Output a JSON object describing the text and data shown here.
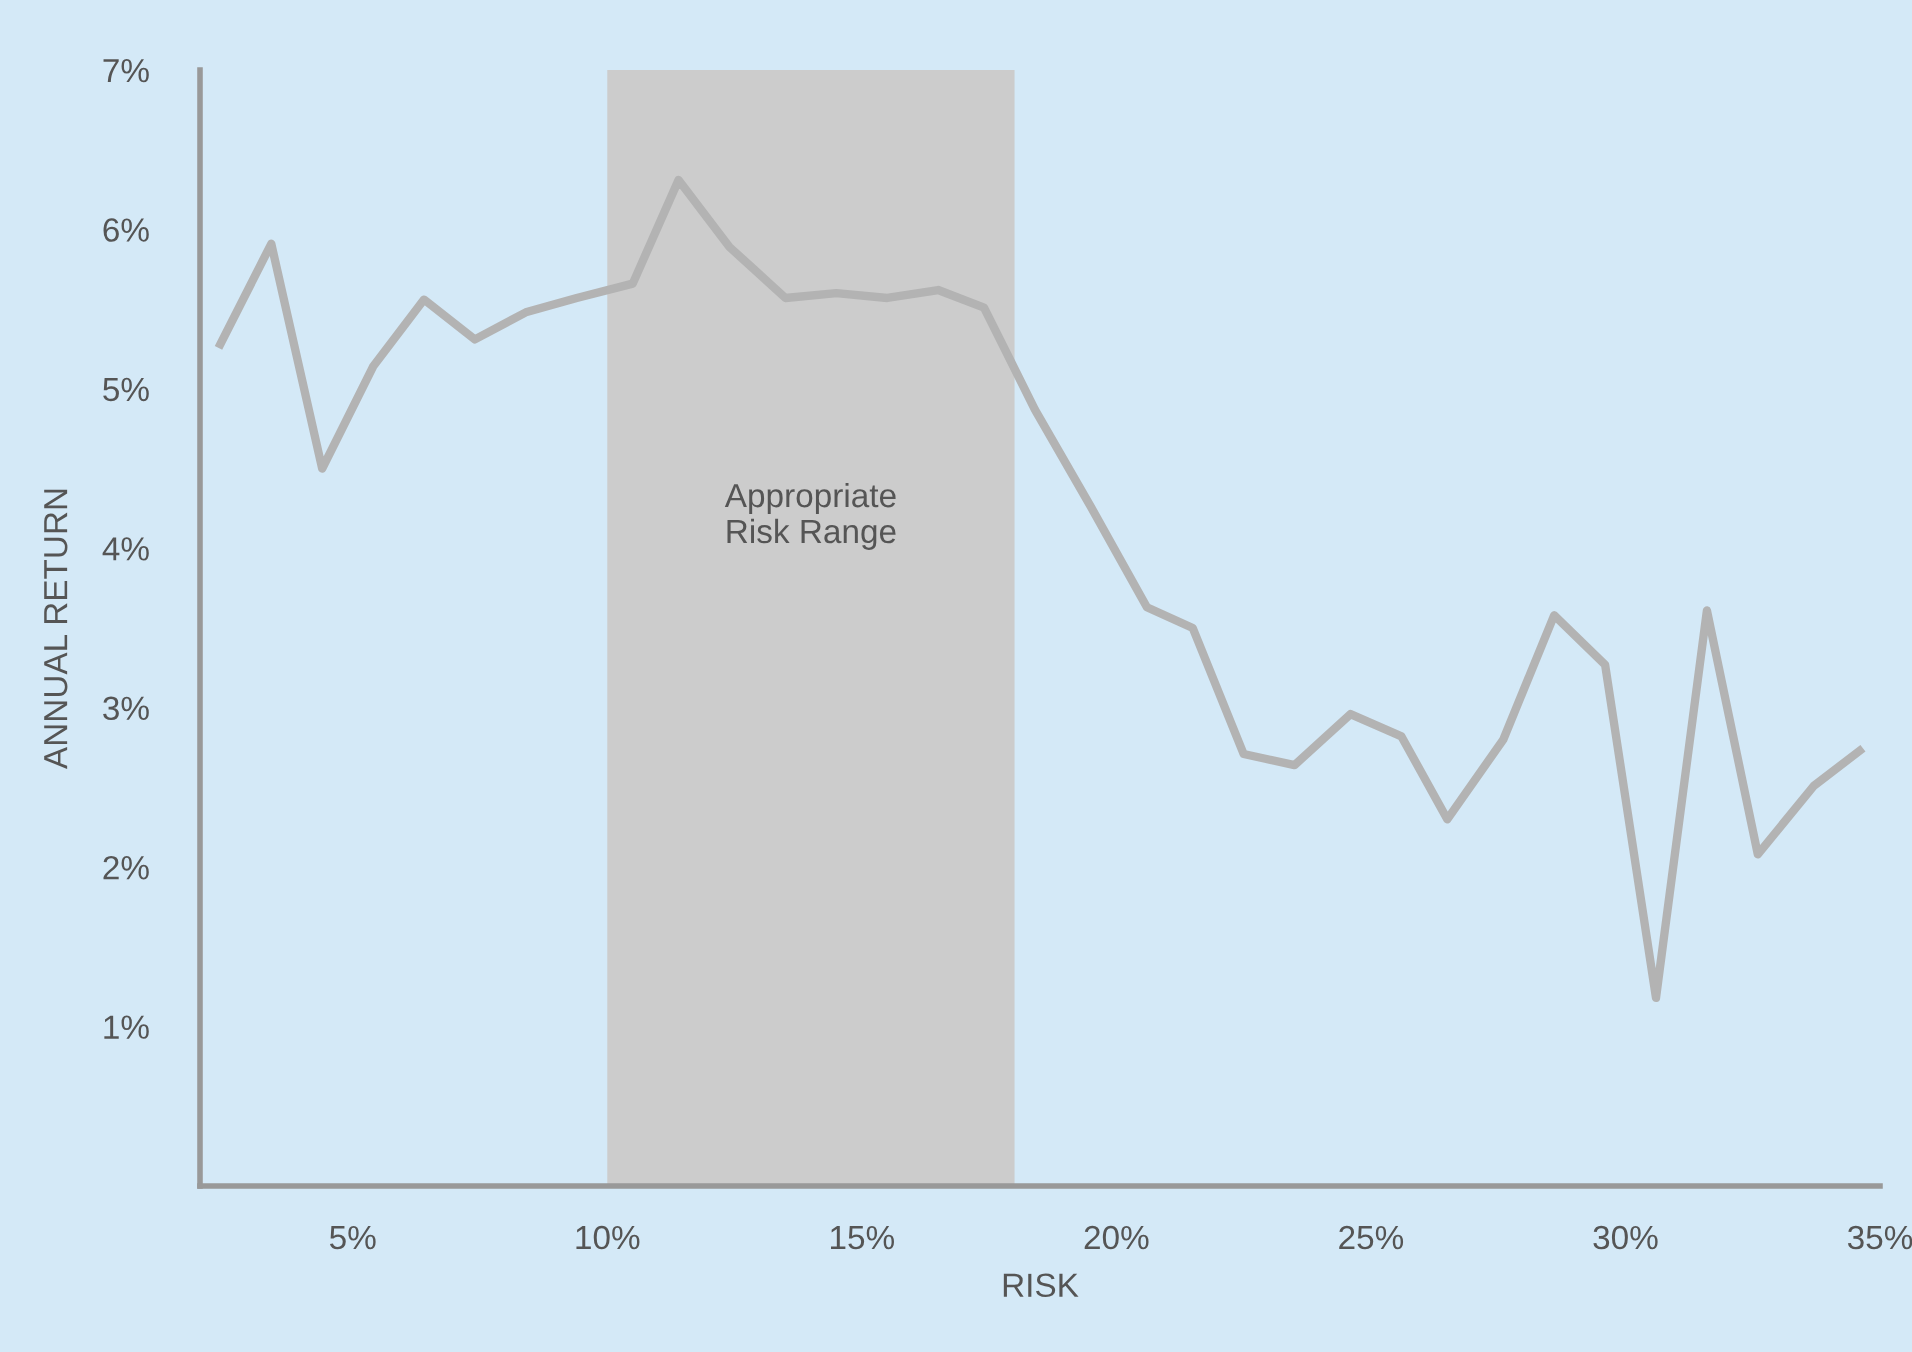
{
  "chart_data": {
    "type": "line",
    "xlabel": "RISK",
    "ylabel": "ANNUAL RETURN",
    "x": [
      2.4,
      3.4,
      4.4,
      5.4,
      6.4,
      7.4,
      8.4,
      9.4,
      10.5,
      11.4,
      12.4,
      13.5,
      14.5,
      15.5,
      16.5,
      17.4,
      18.4,
      19.5,
      20.6,
      21.5,
      22.5,
      23.5,
      24.6,
      25.6,
      26.5,
      27.6,
      28.6,
      29.6,
      30.6,
      31.6,
      32.6,
      33.7,
      34.6
    ],
    "series": [
      {
        "color": "#b3b3b3",
        "values": [
          5.28,
          5.91,
          4.5,
          5.14,
          5.56,
          5.31,
          5.48,
          5.57,
          5.66,
          6.31,
          5.89,
          5.57,
          5.6,
          5.57,
          5.62,
          5.51,
          4.87,
          4.26,
          3.63,
          3.5,
          2.71,
          2.64,
          2.96,
          2.82,
          2.3,
          2.8,
          3.58,
          3.27,
          1.18,
          3.61,
          2.08,
          2.51,
          2.73
        ]
      }
    ],
    "xlim": [
      2,
      35
    ],
    "xticks": [
      {
        "value": 5,
        "label": "5%"
      },
      {
        "value": 10,
        "label": "10%"
      },
      {
        "value": 15,
        "label": "15%"
      },
      {
        "value": 20,
        "label": "20%"
      },
      {
        "value": 25,
        "label": "25%"
      },
      {
        "value": 30,
        "label": "30%"
      },
      {
        "value": 35,
        "label": "35%"
      }
    ],
    "ylim": [
      0,
      7
    ],
    "yticks": [
      {
        "value": 1,
        "label": "1%"
      },
      {
        "value": 2,
        "label": "2%"
      },
      {
        "value": 3,
        "label": "3%"
      },
      {
        "value": 4,
        "label": "4%"
      },
      {
        "value": 5,
        "label": "5%"
      },
      {
        "value": 6,
        "label": "6%"
      },
      {
        "value": 7,
        "label": "7%"
      }
    ],
    "bands": [
      {
        "axis": "x",
        "from": 10,
        "to": 18,
        "label": "Appropriate\nRisk Range",
        "color": "#cccccc"
      }
    ],
    "grid": false,
    "legend": false,
    "marker": "none",
    "line_style": "solid"
  }
}
